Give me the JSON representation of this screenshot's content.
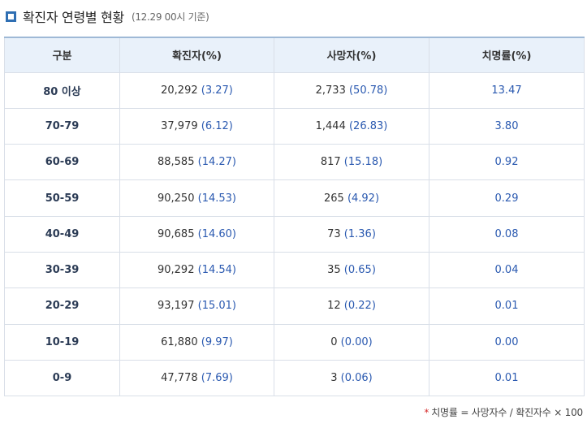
{
  "title": "확진자 연령별 현황",
  "subtitle": "(12.29 00시 기준)",
  "headers": [
    "구분",
    "확진자(%)",
    "사망자(%)",
    "치명률(%)"
  ],
  "rows": [
    {
      "age": "80 이상",
      "cases": "20,292",
      "cases_pct": "(3.27)",
      "deaths": "2,733",
      "deaths_pct": "(50.78)",
      "rate": "13.47"
    },
    {
      "age": "70-79",
      "cases": "37,979",
      "cases_pct": "(6.12)",
      "deaths": "1,444",
      "deaths_pct": "(26.83)",
      "rate": "3.80"
    },
    {
      "age": "60-69",
      "cases": "88,585",
      "cases_pct": "(14.27)",
      "deaths": "817",
      "deaths_pct": "(15.18)",
      "rate": "0.92"
    },
    {
      "age": "50-59",
      "cases": "90,250",
      "cases_pct": "(14.53)",
      "deaths": "265",
      "deaths_pct": "(4.92)",
      "rate": "0.29"
    },
    {
      "age": "40-49",
      "cases": "90,685",
      "cases_pct": "(14.60)",
      "deaths": "73",
      "deaths_pct": "(1.36)",
      "rate": "0.08"
    },
    {
      "age": "30-39",
      "cases": "90,292",
      "cases_pct": "(14.54)",
      "deaths": "35",
      "deaths_pct": "(0.65)",
      "rate": "0.04"
    },
    {
      "age": "20-29",
      "cases": "93,197",
      "cases_pct": "(15.01)",
      "deaths": "12",
      "deaths_pct": "(0.22)",
      "rate": "0.01"
    },
    {
      "age": "10-19",
      "cases": "61,880",
      "cases_pct": "(9.97)",
      "deaths": "0",
      "deaths_pct": "(0.00)",
      "rate": "0.00"
    },
    {
      "age": "0-9",
      "cases": "47,778",
      "cases_pct": "(7.69)",
      "deaths": "3",
      "deaths_pct": "(0.06)",
      "rate": "0.01"
    }
  ],
  "footnote": {
    "star": "*",
    "text": "치명률 = 사망자수 / 확진자수 × 100"
  },
  "colors": {
    "accent": "#2f6fb3",
    "header_bg": "#e9f1fa",
    "percent_text": "#2a59b0",
    "star": "#d62b2b"
  }
}
